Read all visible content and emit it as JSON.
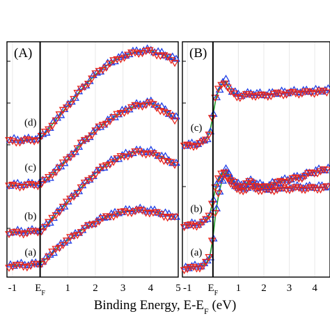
{
  "chart_data": {
    "type": "scatter",
    "xlabel": "Binding Energy, E-E",
    "xlabel_sub": "F",
    "xlabel_unit": " (eV)",
    "fermi_label": "E",
    "fermi_sub": "F",
    "colors": {
      "blue": "#1f3fe6",
      "red": "#e8261d",
      "green": "#1f9a2a",
      "line": "#000000",
      "grid": "#e8e8e8"
    },
    "series": [
      {
        "marker": "triangle-up",
        "color": "#1f3fe6"
      },
      {
        "marker": "triangle-down",
        "color": "#e8261d"
      },
      {
        "marker": "line",
        "color": "#1f9a2a"
      }
    ],
    "panels": [
      {
        "id": "A",
        "label": "(A)",
        "xlim": [
          -1.2,
          5.0
        ],
        "ylim": [
          0,
          1
        ],
        "x_ticks": [
          {
            "value": -1,
            "label": "-1"
          },
          {
            "value": 0,
            "label": "E_F"
          },
          {
            "value": 1,
            "label": "1"
          },
          {
            "value": 2,
            "label": "2"
          },
          {
            "value": 3,
            "label": "3"
          },
          {
            "value": 4,
            "label": "4"
          },
          {
            "value": 5,
            "label": "5"
          }
        ],
        "fermi_x": 0,
        "curves": [
          {
            "label": "(a)",
            "label_x": -0.35,
            "label_y": 0.092,
            "offset": 0.05,
            "amp": 0.24,
            "x": [
              -1.0,
              -0.6,
              -0.3,
              0.0,
              0.3,
              0.6,
              1.0,
              1.5,
              2.0,
              2.5,
              3.0,
              3.5,
              4.0,
              4.5,
              5.0
            ],
            "y": [
              0.0,
              0.005,
              0.01,
              0.03,
              0.15,
              0.3,
              0.45,
              0.62,
              0.77,
              0.88,
              0.95,
              0.98,
              0.96,
              0.9,
              0.84
            ]
          },
          {
            "label": "(b)",
            "label_x": -0.35,
            "label_y": 0.246,
            "offset": 0.19,
            "amp": 0.37,
            "x": [
              -1.0,
              -0.6,
              -0.3,
              0.0,
              0.3,
              0.6,
              1.0,
              1.5,
              2.0,
              2.5,
              3.0,
              3.5,
              4.0,
              4.5,
              5.0
            ],
            "y": [
              0.0,
              0.005,
              0.01,
              0.02,
              0.1,
              0.22,
              0.35,
              0.52,
              0.68,
              0.8,
              0.88,
              0.93,
              0.92,
              0.85,
              0.76
            ]
          },
          {
            "label": "(c)",
            "label_x": -0.35,
            "label_y": 0.452,
            "offset": 0.39,
            "amp": 0.37,
            "x": [
              -1.0,
              -0.6,
              -0.3,
              0.0,
              0.3,
              0.6,
              1.0,
              1.5,
              2.0,
              2.5,
              3.0,
              3.5,
              4.0,
              4.5,
              5.0
            ],
            "y": [
              0.0,
              0.005,
              0.01,
              0.02,
              0.08,
              0.18,
              0.3,
              0.48,
              0.63,
              0.75,
              0.85,
              0.92,
              0.95,
              0.86,
              0.74
            ]
          },
          {
            "label": "(d)",
            "label_x": -0.35,
            "label_y": 0.643,
            "offset": 0.58,
            "amp": 0.39,
            "x": [
              -1.0,
              -0.6,
              -0.3,
              0.0,
              0.3,
              0.6,
              1.0,
              1.5,
              2.0,
              2.5,
              3.0,
              3.5,
              4.0,
              4.5,
              5.0
            ],
            "y": [
              0.0,
              0.005,
              0.01,
              0.03,
              0.12,
              0.24,
              0.38,
              0.56,
              0.72,
              0.84,
              0.92,
              0.97,
              0.98,
              0.93,
              0.86
            ]
          }
        ]
      },
      {
        "id": "B",
        "label": "(B)",
        "xlim": [
          -1.2,
          4.6
        ],
        "ylim": [
          0,
          1
        ],
        "x_ticks": [
          {
            "value": -1,
            "label": "-1"
          },
          {
            "value": 0,
            "label": "E_F"
          },
          {
            "value": 1,
            "label": "1"
          },
          {
            "value": 2,
            "label": "2"
          },
          {
            "value": 3,
            "label": "3"
          },
          {
            "value": 4,
            "label": "4"
          }
        ],
        "fermi_x": 0,
        "curves": [
          {
            "label": "(a)",
            "label_x": -0.65,
            "label_y": 0.092,
            "offset": 0.04,
            "amp": 0.42,
            "x": [
              -1.0,
              -0.6,
              -0.3,
              -0.1,
              0.0,
              0.1,
              0.3,
              0.5,
              0.7,
              1.0,
              1.5,
              2.0,
              2.5,
              3.0,
              3.5,
              4.0,
              4.6
            ],
            "y": [
              0.0,
              0.01,
              0.03,
              0.12,
              0.3,
              0.55,
              0.85,
              0.97,
              0.88,
              0.78,
              0.82,
              0.79,
              0.8,
              0.81,
              0.81,
              0.81,
              0.82
            ]
          },
          {
            "label": "(b)",
            "label_x": -0.65,
            "label_y": 0.276,
            "offset": 0.22,
            "amp": 0.26,
            "x": [
              -1.0,
              -0.6,
              -0.3,
              -0.1,
              0.0,
              0.1,
              0.3,
              0.5,
              0.7,
              1.0,
              1.5,
              2.0,
              2.5,
              3.0,
              3.5,
              4.0,
              4.6
            ],
            "y": [
              0.0,
              0.02,
              0.06,
              0.2,
              0.4,
              0.62,
              0.82,
              0.9,
              0.76,
              0.64,
              0.72,
              0.62,
              0.7,
              0.75,
              0.8,
              0.88,
              0.92
            ]
          },
          {
            "label": "(c)",
            "label_x": -0.65,
            "label_y": 0.622,
            "offset": 0.56,
            "amp": 0.28,
            "x": [
              -1.0,
              -0.6,
              -0.3,
              -0.1,
              0.0,
              0.1,
              0.3,
              0.5,
              0.7,
              1.0,
              1.5,
              2.0,
              2.5,
              3.0,
              3.5,
              4.0,
              4.6
            ],
            "y": [
              0.0,
              0.02,
              0.06,
              0.22,
              0.45,
              0.7,
              0.92,
              0.98,
              0.82,
              0.75,
              0.78,
              0.76,
              0.79,
              0.8,
              0.81,
              0.82,
              0.83
            ]
          }
        ]
      }
    ]
  }
}
